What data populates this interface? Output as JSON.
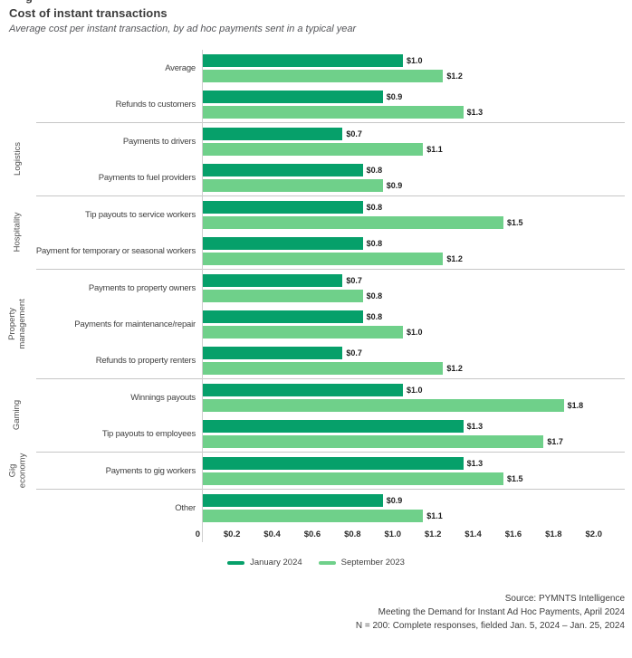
{
  "header": {
    "clipped_artifact": "g"
  },
  "chart_data": {
    "type": "bar",
    "orientation": "horizontal",
    "title": "Cost of instant transactions",
    "subtitle": "Average cost per instant transaction, by ad hoc payments sent in a typical year",
    "unit": "USD per transaction",
    "xlim": [
      0,
      2.0
    ],
    "grid": false,
    "legend_position": "bottom-center",
    "x_tick_values": [
      0,
      0.2,
      0.4,
      0.6,
      0.8,
      1.0,
      1.2,
      1.4,
      1.6,
      1.8,
      2.0
    ],
    "x_tick_labels": [
      "0",
      "$0.2",
      "$0.4",
      "$0.6",
      "$0.8",
      "$1.0",
      "$1.2",
      "$1.4",
      "$1.6",
      "$1.8",
      "$2.0"
    ],
    "series": [
      {
        "name": "January 2024",
        "color": "#06a06a"
      },
      {
        "name": "September 2023",
        "color": "#6fd08a"
      }
    ],
    "groups": [
      {
        "label": "",
        "rows": [
          {
            "label": "Average",
            "values": [
              1.0,
              1.2
            ],
            "display": [
              "$1.0",
              "$1.2"
            ]
          },
          {
            "label": "Refunds to customers",
            "values": [
              0.9,
              1.3
            ],
            "display": [
              "$0.9",
              "$1.3"
            ]
          }
        ]
      },
      {
        "label": "Logistics",
        "rows": [
          {
            "label": "Payments to drivers",
            "values": [
              0.7,
              1.1
            ],
            "display": [
              "$0.7",
              "$1.1"
            ]
          },
          {
            "label": "Payments to fuel providers",
            "values": [
              0.8,
              0.9
            ],
            "display": [
              "$0.8",
              "$0.9"
            ]
          }
        ]
      },
      {
        "label": "Hospitality",
        "rows": [
          {
            "label": "Tip payouts to service workers",
            "values": [
              0.8,
              1.5
            ],
            "display": [
              "$0.8",
              "$1.5"
            ]
          },
          {
            "label": "Payment for temporary or seasonal workers",
            "values": [
              0.8,
              1.2
            ],
            "display": [
              "$0.8",
              "$1.2"
            ]
          }
        ]
      },
      {
        "label": "Property\nmanagement",
        "rows": [
          {
            "label": "Payments to property owners",
            "values": [
              0.7,
              0.8
            ],
            "display": [
              "$0.7",
              "$0.8"
            ]
          },
          {
            "label": "Payments for maintenance/repair",
            "values": [
              0.8,
              1.0
            ],
            "display": [
              "$0.8",
              "$1.0"
            ]
          },
          {
            "label": "Refunds to property renters",
            "values": [
              0.7,
              1.2
            ],
            "display": [
              "$0.7",
              "$1.2"
            ]
          }
        ]
      },
      {
        "label": "Gaming",
        "rows": [
          {
            "label": "Winnings payouts",
            "values": [
              1.0,
              1.8
            ],
            "display": [
              "$1.0",
              "$1.8"
            ]
          },
          {
            "label": "Tip payouts to employees",
            "values": [
              1.3,
              1.7
            ],
            "display": [
              "$1.3",
              "$1.7"
            ]
          }
        ]
      },
      {
        "label": "Gig\neconomy",
        "rows": [
          {
            "label": "Payments to gig workers",
            "values": [
              1.3,
              1.5
            ],
            "display": [
              "$1.3",
              "$1.5"
            ]
          }
        ]
      },
      {
        "label": "",
        "rows": [
          {
            "label": "Other",
            "values": [
              0.9,
              1.1
            ],
            "display": [
              "$0.9",
              "$1.1"
            ]
          }
        ]
      }
    ],
    "legend": [
      {
        "label": "January 2024"
      },
      {
        "label": "September 2023"
      }
    ]
  },
  "footer": {
    "lines": [
      "Source: PYMNTS Intelligence",
      "Meeting the Demand for Instant Ad Hoc Payments, April 2024",
      "N = 200: Complete responses, fielded Jan. 5, 2024 – Jan. 25, 2024"
    ]
  }
}
